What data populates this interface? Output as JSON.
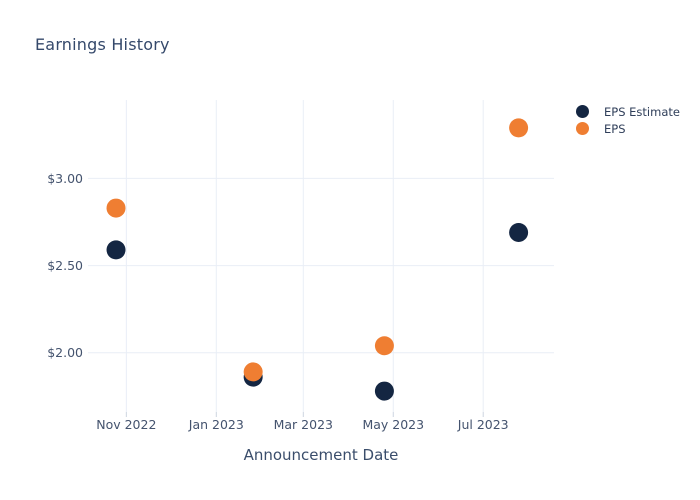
{
  "palette": {
    "background": "#ffffff",
    "navy": "#142642",
    "orange": "#ef7e32",
    "title_color": "#35496b",
    "tick_label_color": "#44536e",
    "axis_title_color": "#3a4d6b",
    "legend_text_color": "#2f3e59",
    "gridline_color": "#e9eef6",
    "tick_mark_color": "#cdd5e0"
  },
  "chart_data": {
    "type": "scatter",
    "title": "Earnings History",
    "xlabel": "Announcement Date",
    "ylabel": "",
    "grid": true,
    "legend_position": "top-right",
    "marker_radius": 9.5,
    "x_dates": [
      "2022-10-25",
      "2023-01-26",
      "2023-04-25",
      "2023-07-25"
    ],
    "series": [
      {
        "name": "EPS Estimate",
        "color_key": "navy",
        "values": [
          2.59,
          1.86,
          1.78,
          2.69
        ]
      },
      {
        "name": "EPS",
        "color_key": "orange",
        "values": [
          2.83,
          1.89,
          2.04,
          3.29
        ]
      }
    ],
    "xlim": [
      "2022-10-06",
      "2023-08-18"
    ],
    "ylim": [
      1.66,
      3.45
    ],
    "x_ticks": [
      {
        "date": "2022-11-01",
        "label": "Nov 2022"
      },
      {
        "date": "2023-01-01",
        "label": "Jan 2023"
      },
      {
        "date": "2023-03-01",
        "label": "Mar 2023"
      },
      {
        "date": "2023-05-01",
        "label": "May 2023"
      },
      {
        "date": "2023-07-01",
        "label": "Jul 2023"
      }
    ],
    "y_ticks": [
      {
        "value": 2.0,
        "label": "$2.00"
      },
      {
        "value": 2.5,
        "label": "$2.50"
      },
      {
        "value": 3.0,
        "label": "$3.00"
      }
    ]
  }
}
